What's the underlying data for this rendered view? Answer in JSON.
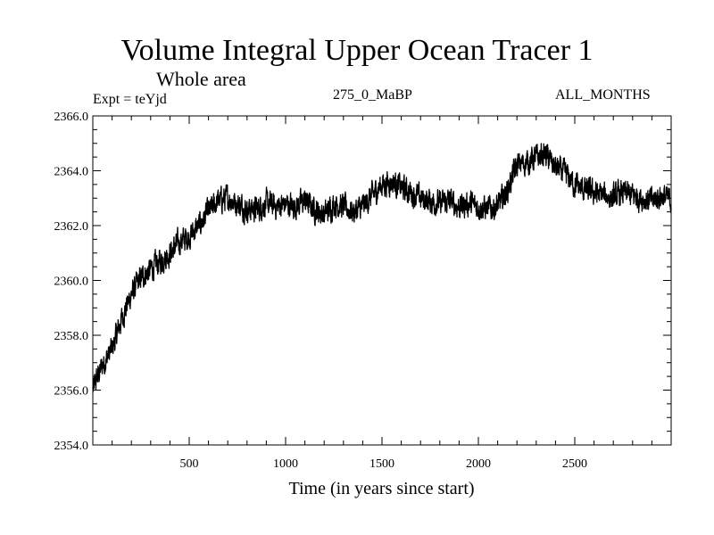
{
  "header": {
    "title": "Volume Integral Upper Ocean Tracer 1",
    "subtitle": "Whole area",
    "expt_label": "Expt = teYjd",
    "period_label": "275_0_MaBP",
    "months_label": "ALL_MONTHS"
  },
  "chart_data": {
    "type": "line",
    "title": "Volume Integral Upper Ocean Tracer 1",
    "subtitle": "Whole area",
    "xlabel": "Time (in years since start)",
    "ylabel": "",
    "xlim": [
      0,
      3000
    ],
    "ylim": [
      2354.0,
      2366.0
    ],
    "x_ticks": [
      500,
      1000,
      1500,
      2000,
      2500
    ],
    "y_ticks": [
      2354.0,
      2356.0,
      2358.0,
      2360.0,
      2362.0,
      2364.0,
      2366.0
    ],
    "y_tick_labels": [
      "2354.0",
      "2356.0",
      "2358.0",
      "2360.0",
      "2362.0",
      "2364.0",
      "2366.0"
    ],
    "grid": false,
    "series": [
      {
        "name": "Tracer 1",
        "color": "#000000",
        "x": [
          0,
          20,
          50,
          100,
          150,
          200,
          250,
          300,
          350,
          400,
          450,
          500,
          550,
          600,
          650,
          700,
          750,
          800,
          850,
          900,
          950,
          1000,
          1050,
          1100,
          1150,
          1200,
          1250,
          1300,
          1350,
          1400,
          1450,
          1500,
          1550,
          1600,
          1650,
          1700,
          1750,
          1800,
          1850,
          1900,
          1950,
          2000,
          2050,
          2100,
          2150,
          2200,
          2250,
          2300,
          2350,
          2400,
          2450,
          2500,
          2550,
          2600,
          2650,
          2700,
          2750,
          2800,
          2850,
          2900,
          2950,
          3000
        ],
        "values": [
          2356.0,
          2356.4,
          2356.9,
          2357.5,
          2358.6,
          2359.5,
          2360.1,
          2360.4,
          2360.7,
          2361.0,
          2361.4,
          2361.6,
          2362.0,
          2362.5,
          2362.9,
          2363.0,
          2362.8,
          2362.6,
          2362.6,
          2362.8,
          2362.7,
          2362.8,
          2362.7,
          2362.9,
          2362.6,
          2362.4,
          2362.8,
          2362.7,
          2362.5,
          2362.7,
          2363.1,
          2363.5,
          2363.6,
          2363.4,
          2363.2,
          2363.0,
          2362.9,
          2362.8,
          2362.9,
          2362.7,
          2362.8,
          2362.7,
          2362.6,
          2362.7,
          2363.3,
          2364.2,
          2364.3,
          2364.5,
          2364.6,
          2364.1,
          2363.9,
          2363.5,
          2363.3,
          2363.2,
          2363.1,
          2363.0,
          2363.2,
          2363.1,
          2363.0,
          2362.9,
          2363.1,
          2362.9
        ],
        "noise_amplitude": 0.35
      }
    ]
  }
}
